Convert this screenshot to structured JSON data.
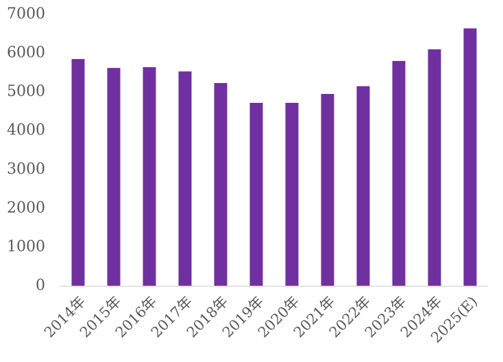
{
  "chart_data": {
    "type": "bar",
    "categories": [
      "2014年",
      "2015年",
      "2016年",
      "2017年",
      "2018年",
      "2019年",
      "2020年",
      "2021年",
      "2022年",
      "2023年",
      "2024年",
      "2025(E)"
    ],
    "values": [
      5850,
      5620,
      5640,
      5530,
      5230,
      4720,
      4720,
      4950,
      5150,
      5800,
      6100,
      6640
    ],
    "yticks": [
      "0",
      "1000",
      "2000",
      "3000",
      "4000",
      "5000",
      "6000",
      "7000"
    ],
    "ylim": [
      0,
      7000
    ],
    "grid": false,
    "legend": "none",
    "colors": {
      "bar": "#7030a0",
      "axis": "#d9d9d9",
      "tick_text": "#595959"
    }
  }
}
